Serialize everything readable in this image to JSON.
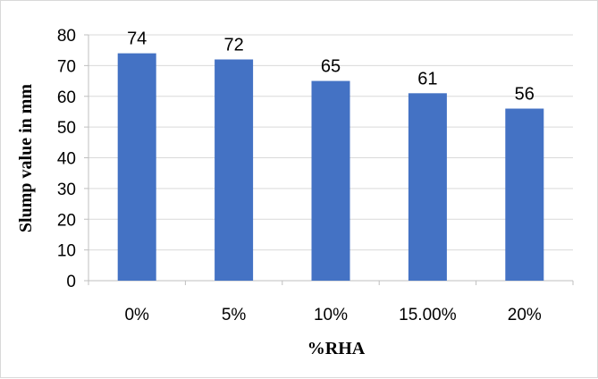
{
  "chart_data": {
    "type": "bar",
    "categories": [
      "0%",
      "5%",
      "10%",
      "15.00%",
      "20%"
    ],
    "values": [
      74,
      72,
      65,
      61,
      56
    ],
    "data_labels": [
      "74",
      "72",
      "65",
      "61",
      "56"
    ],
    "title": "",
    "xlabel": "%RHA",
    "ylabel": "Slump value in mm",
    "ylim": [
      0,
      80
    ],
    "yticks": [
      0,
      10,
      20,
      30,
      40,
      50,
      60,
      70,
      80
    ],
    "grid": true,
    "legend": "none",
    "bar_color": "#4472c4",
    "grid_color": "#d9d9d9",
    "axis_color": "#bfbfbf"
  }
}
